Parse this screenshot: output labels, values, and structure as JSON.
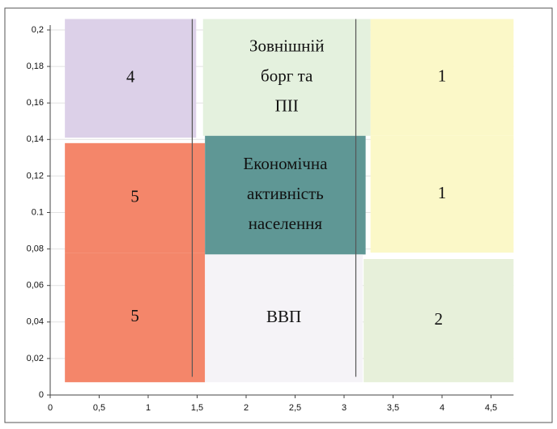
{
  "chart_data": {
    "type": "region",
    "xlim": [
      0,
      4.73
    ],
    "ylim": [
      0,
      0.2
    ],
    "xticks": [
      0,
      {
        "value": 0.5,
        "label": "0,5"
      },
      1,
      {
        "value": 1.5,
        "label": "1,5"
      },
      2,
      {
        "value": 2.5,
        "label": "2,5"
      },
      3,
      {
        "value": 3.5,
        "label": "3,5"
      },
      4,
      {
        "value": 4.5,
        "label": "4,5"
      }
    ],
    "yticks": [
      0,
      {
        "value": 0.02,
        "label": "0,02"
      },
      {
        "value": 0.04,
        "label": "0,04"
      },
      {
        "value": 0.06,
        "label": "0,06"
      },
      {
        "value": 0.08,
        "label": "0,08"
      },
      0.1,
      {
        "value": 0.12,
        "label": "0,12"
      },
      {
        "value": 0.14,
        "label": "0,14"
      },
      {
        "value": 0.16,
        "label": "0,16"
      },
      {
        "value": 0.18,
        "label": "0,18"
      },
      {
        "value": 0.2,
        "label": "0,2"
      }
    ],
    "grid": true,
    "regions": [
      {
        "label": [
          "4"
        ],
        "x": [
          0.15,
          1.49
        ],
        "y": [
          0.141,
          0.206
        ],
        "color": "#dcd0e8"
      },
      {
        "label": [
          "Зовнішній",
          "борг та",
          "ПІІ"
        ],
        "x": [
          1.56,
          3.27
        ],
        "y": [
          0.142,
          0.206
        ],
        "color": "#e4f1de"
      },
      {
        "label": [
          "1"
        ],
        "x": [
          3.27,
          4.73
        ],
        "y": [
          0.142,
          0.206
        ],
        "color": "#fbf8c8"
      },
      {
        "label": [
          "1"
        ],
        "x": [
          3.27,
          4.73
        ],
        "y": [
          0.078,
          0.142
        ],
        "color": "#fbf8c8"
      },
      {
        "label": [
          "5"
        ],
        "x": [
          0.15,
          1.58
        ],
        "y": [
          0.078,
          0.138
        ],
        "color": "#f4866a"
      },
      {
        "label": [
          "5"
        ],
        "x": [
          0.15,
          1.58
        ],
        "y": [
          0.007,
          0.078
        ],
        "color": "#f4866a"
      },
      {
        "label": [
          "Економічна",
          "активність",
          "населення"
        ],
        "x": [
          1.58,
          3.22
        ],
        "y": [
          0.077,
          0.142
        ],
        "color": "#5f9795"
      },
      {
        "label": [
          "ВВП"
        ],
        "x": [
          1.58,
          3.19
        ],
        "y": [
          0.007,
          0.077
        ],
        "color": "#f5f3f7"
      },
      {
        "label": [
          "2"
        ],
        "x": [
          3.2,
          4.73
        ],
        "y": [
          0.007,
          0.0745
        ],
        "color": "#e7f0da"
      }
    ],
    "vlines": [
      {
        "x": 1.45,
        "y": [
          0.01,
          0.206
        ]
      },
      {
        "x": 3.12,
        "y": [
          0.01,
          0.206
        ]
      }
    ]
  }
}
